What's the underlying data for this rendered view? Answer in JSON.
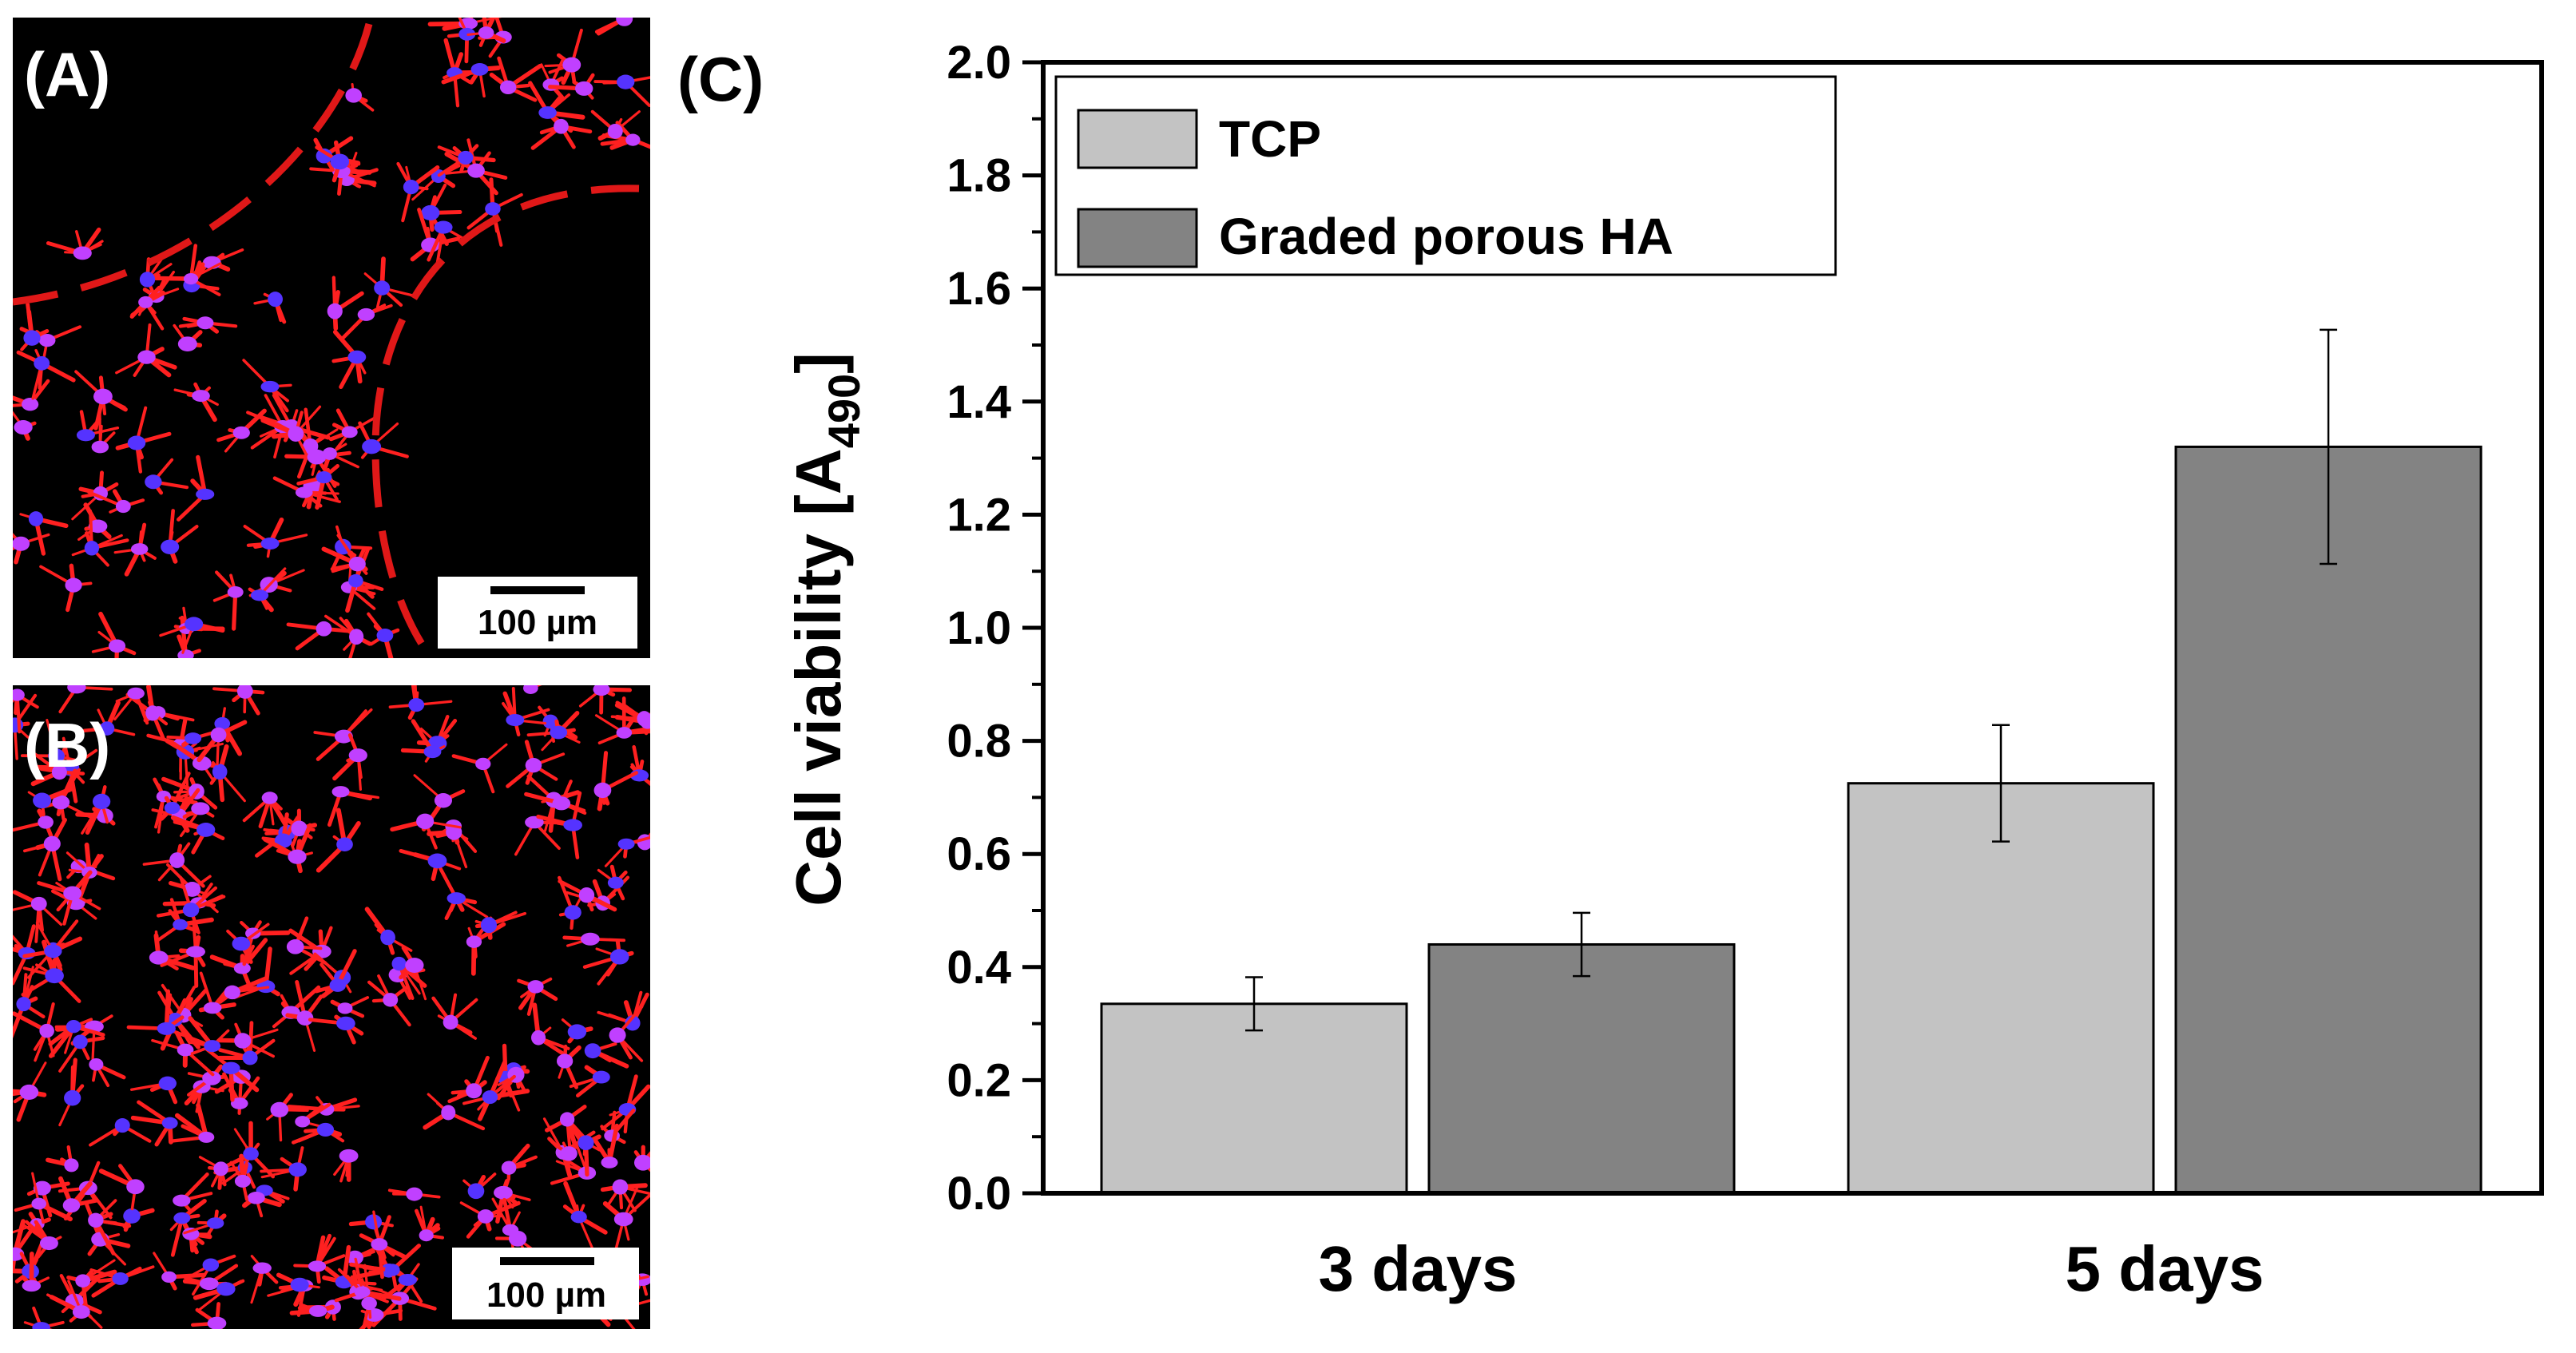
{
  "panels": {
    "a": {
      "label": "(A)",
      "scale_bar": "100 µm"
    },
    "b": {
      "label": "(B)",
      "scale_bar": "100 µm"
    },
    "c": {
      "label": "(C)"
    }
  },
  "colors": {
    "tcp": "#c3c3c3",
    "graded": "#838383",
    "actin": "#ff2020",
    "nucleus": "#c040ff",
    "boundary": "#e01818"
  },
  "chart_data": {
    "type": "bar",
    "categories": [
      "3 days",
      "5 days"
    ],
    "series": [
      {
        "name": "TCP",
        "values": [
          0.335,
          0.725
        ],
        "errors": [
          0.047,
          0.103
        ]
      },
      {
        "name": "Graded porous HA",
        "values": [
          0.44,
          1.32
        ],
        "errors": [
          0.056,
          0.207
        ]
      }
    ],
    "xlabel": "",
    "ylabel_main": "Cell viability [A",
    "ylabel_sub": "490",
    "ylabel_close": "]",
    "ylim": [
      0,
      2.0
    ],
    "yticks": [
      "0.0",
      "0.2",
      "0.4",
      "0.6",
      "0.8",
      "1.0",
      "1.2",
      "1.4",
      "1.6",
      "1.8",
      "2.0"
    ],
    "legend": "top-left",
    "grid": false
  }
}
